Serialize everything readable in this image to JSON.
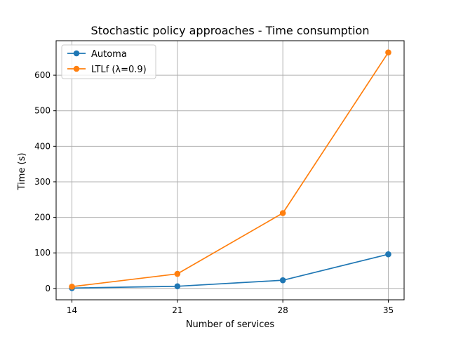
{
  "chart_data": {
    "type": "line",
    "title": "Stochastic policy approaches - Time consumption",
    "xlabel": "Number of services",
    "ylabel": "Time (s)",
    "x": [
      14,
      21,
      28,
      35
    ],
    "xticks": [
      "14",
      "21",
      "28",
      "35"
    ],
    "yticks": [
      "0",
      "100",
      "200",
      "300",
      "400",
      "500",
      "600"
    ],
    "ylim": [
      -32,
      697
    ],
    "grid": true,
    "legend_position": "top-left",
    "series": [
      {
        "name": "Automa",
        "values": [
          1,
          6,
          23,
          96
        ],
        "color": "#1f77b4",
        "marker": "circle"
      },
      {
        "name": "LTLf (λ=0.9)",
        "values": [
          5,
          41,
          212,
          664
        ],
        "color": "#ff7f0e",
        "marker": "circle"
      }
    ]
  }
}
